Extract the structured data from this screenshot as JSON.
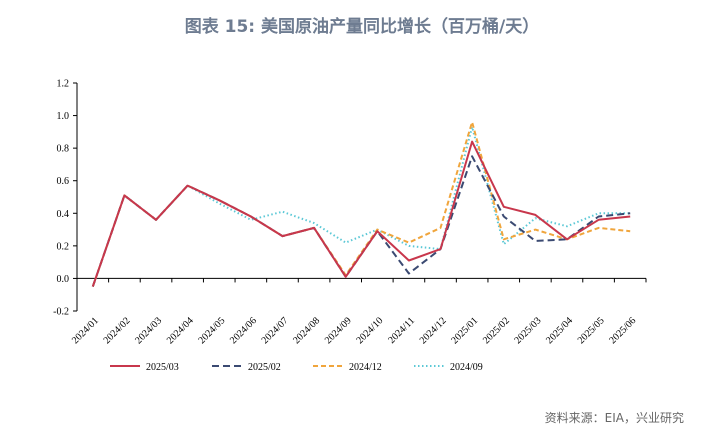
{
  "title": "图表 15: 美国原油产量同比增长（百万桶/天）",
  "source": "资料来源：EIA，兴业研究",
  "chart_data": {
    "type": "line",
    "title": "图表 15: 美国原油产量同比增长（百万桶/天）",
    "xlabel": "",
    "ylabel": "",
    "ylim": [
      -0.2,
      1.2
    ],
    "yticks": [
      "-0.2",
      "0.0",
      "0.2",
      "0.4",
      "0.6",
      "0.8",
      "1.0",
      "1.2"
    ],
    "x": [
      "2024/01",
      "2024/02",
      "2024/03",
      "2024/04",
      "2024/05",
      "2024/06",
      "2024/07",
      "2024/08",
      "2024/09",
      "2024/10",
      "2024/11",
      "2024/12",
      "2025/01",
      "2025/02",
      "2025/03",
      "2025/04",
      "2025/05",
      "2025/06"
    ],
    "legend_position": "bottom",
    "grid": false,
    "series": [
      {
        "name": "2025/03",
        "color": "#c8374c",
        "dash": "solid",
        "values": [
          -0.05,
          0.51,
          0.36,
          0.57,
          0.48,
          0.38,
          0.26,
          0.31,
          0.01,
          0.29,
          0.11,
          0.18,
          0.84,
          0.44,
          0.39,
          0.24,
          0.36,
          0.38
        ]
      },
      {
        "name": "2025/02",
        "color": "#3b4a72",
        "dash": "long",
        "values": [
          -0.05,
          0.51,
          0.36,
          0.57,
          0.48,
          0.38,
          0.26,
          0.31,
          0.01,
          0.29,
          0.03,
          0.18,
          0.75,
          0.38,
          0.23,
          0.24,
          0.38,
          0.4
        ]
      },
      {
        "name": "2024/12",
        "color": "#f0a53c",
        "dash": "short",
        "values": [
          -0.05,
          0.51,
          0.36,
          0.57,
          0.48,
          0.38,
          0.26,
          0.31,
          0.02,
          0.3,
          0.22,
          0.31,
          0.96,
          0.24,
          0.3,
          0.24,
          0.31,
          0.29
        ]
      },
      {
        "name": "2024/09",
        "color": "#5bc8d6",
        "dash": "dot",
        "values": [
          -0.05,
          0.51,
          0.36,
          0.57,
          0.46,
          0.36,
          0.41,
          0.34,
          0.22,
          0.3,
          0.2,
          0.18,
          0.93,
          0.21,
          0.37,
          0.32,
          0.4,
          0.4
        ]
      }
    ]
  }
}
